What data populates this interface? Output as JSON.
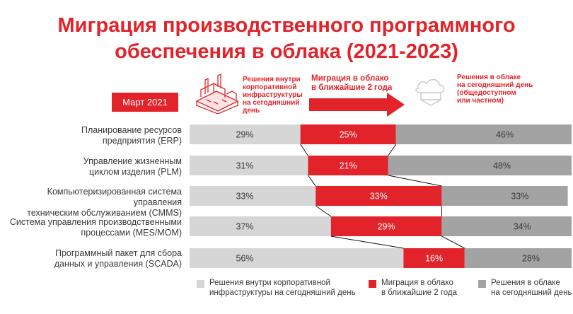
{
  "title": {
    "line1": "Миграция производственного программного",
    "line2": "обеспечения в облака (2021-2023)"
  },
  "headers": {
    "onprem": [
      "Решения внутри",
      "корпоративной",
      "инфраструктуры",
      "на сегодняшний",
      "день"
    ],
    "migration": [
      "Миграция в облако",
      "в ближайшие 2 года"
    ],
    "cloud": [
      "Решения в облаке",
      "на сегодняшний день",
      "(общедоступном",
      "или частном)"
    ]
  },
  "period": "Март 2021",
  "colors": {
    "onprem": "#d6d6d6",
    "migration": "#e2232a",
    "cloud": "#a3a3a3",
    "connector": "#111111"
  },
  "chart_data": {
    "type": "bar",
    "stacked": true,
    "orientation": "horizontal",
    "categories": [
      [
        "Планирование ресурсов",
        "предприятия (ERP)"
      ],
      [
        "Управление жизненным",
        "циклом изделия (PLM)"
      ],
      [
        "Компьютеризированная система управления",
        "техническим обслуживанием (CMMS)"
      ],
      [
        "Система управления производственными",
        "процессами (MES/MOM)"
      ],
      [
        "Программный пакет для сбора",
        "данных и управления (SCADA)"
      ]
    ],
    "series": [
      {
        "name": "Решения внутри корпоративной инфраструктуры на сегодняшний день",
        "values": [
          29,
          31,
          33,
          37,
          56
        ],
        "labels": [
          "29%",
          "31%",
          "33%",
          "37%",
          "56%"
        ]
      },
      {
        "name": "Миграция в облако в ближайшие 2 года",
        "values": [
          25,
          21,
          33,
          29,
          16
        ],
        "labels": [
          "25%",
          "21%",
          "33%",
          "29%",
          "16%"
        ]
      },
      {
        "name": "Решения в облаке на сегодняшний день",
        "values": [
          46,
          48,
          33,
          34,
          28
        ],
        "labels": [
          "46%",
          "48%",
          "33%",
          "34%",
          "28%"
        ]
      }
    ],
    "xlim": [
      0,
      100
    ]
  },
  "legend": [
    [
      "Решения внутри корпоративной",
      "инфраструктуры на сегодняшний день"
    ],
    [
      "Миграция в облако",
      "в ближайшие 2 года"
    ],
    [
      "Решения в облаке",
      "на сегодняшний день"
    ]
  ]
}
